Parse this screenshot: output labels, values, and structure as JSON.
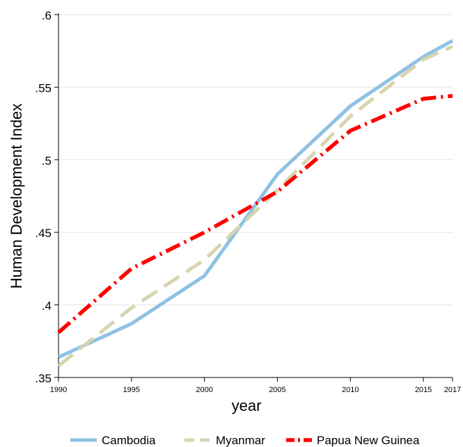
{
  "chart_data": {
    "type": "line",
    "title": "",
    "xlabel": "year",
    "ylabel": "Human Development Index",
    "xlim": [
      1990,
      2017
    ],
    "ylim": [
      0.35,
      0.6
    ],
    "x_ticks": [
      1990,
      1995,
      2000,
      2005,
      2010,
      2015,
      2017
    ],
    "x_tick_labels": [
      "1990",
      "1995",
      "2000",
      "2005",
      "2010",
      "2015",
      "2017"
    ],
    "y_ticks": [
      0.35,
      0.4,
      0.45,
      0.5,
      0.55,
      0.6
    ],
    "y_tick_labels": [
      ".35",
      ".4",
      ".45",
      ".5",
      ".55",
      ".6"
    ],
    "grid": "horizontal",
    "legend_position": "bottom",
    "x": [
      1990,
      1995,
      2000,
      2005,
      2010,
      2015,
      2017
    ],
    "series": [
      {
        "name": "Cambodia",
        "color": "#8fc1e3",
        "style": "solid",
        "values": [
          0.364,
          0.387,
          0.42,
          0.49,
          0.537,
          0.571,
          0.582
        ]
      },
      {
        "name": "Myanmar",
        "color": "#d8d4ae",
        "style": "dashed",
        "values": [
          0.358,
          0.398,
          0.431,
          0.479,
          0.53,
          0.569,
          0.578
        ]
      },
      {
        "name": "Papua New Guinea",
        "color": "#ff0000",
        "style": "dash-dot",
        "values": [
          0.381,
          0.425,
          0.45,
          0.478,
          0.52,
          0.542,
          0.544
        ]
      }
    ]
  }
}
